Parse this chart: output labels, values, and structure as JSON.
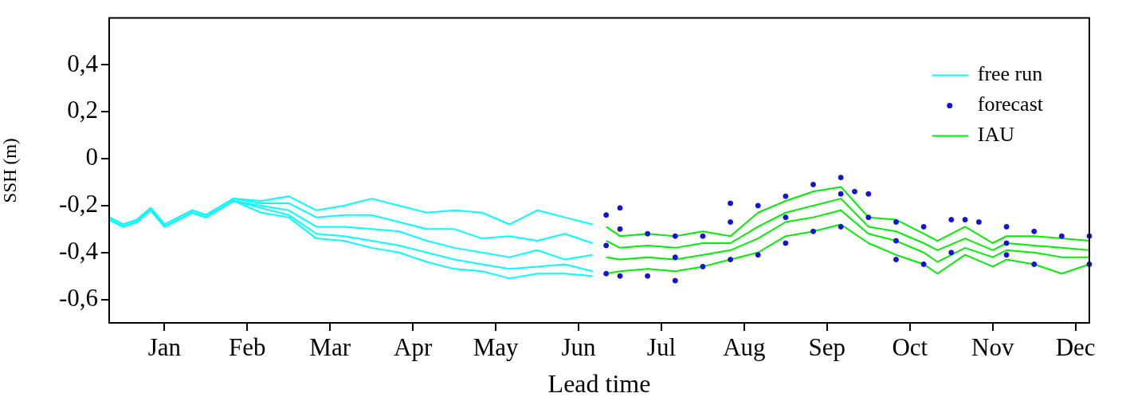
{
  "chart_data": {
    "type": "line",
    "xlabel": "Lead time",
    "ylabel": "SSH (m)",
    "legend": "top right",
    "ylim": [
      -0.7,
      0.6
    ],
    "categories": [
      null,
      null,
      null,
      null,
      "Jan",
      null,
      null,
      null,
      null,
      null,
      "Feb",
      null,
      null,
      null,
      null,
      null,
      "Mar",
      null,
      null,
      null,
      null,
      null,
      "Apr",
      null,
      null,
      null,
      null,
      null,
      "May",
      null,
      null,
      null,
      null,
      null,
      "Jun",
      null,
      null,
      null,
      null,
      null,
      "Jul",
      null,
      null,
      null,
      null,
      null,
      "Aug",
      null,
      null,
      null,
      null,
      null,
      "Sep",
      null,
      null,
      null,
      null,
      null,
      "Oct",
      null,
      null,
      null,
      null,
      null,
      "Nov",
      null,
      null,
      null,
      null,
      null,
      "Dec",
      null
    ],
    "yticks": [
      {
        "value": -0.6,
        "label": "-0,6"
      },
      {
        "value": -0.4,
        "label": "-0,4"
      },
      {
        "value": -0.2,
        "label": "-0,2"
      },
      {
        "value": 0,
        "label": "0"
      },
      {
        "value": 0.2,
        "label": "0,2"
      },
      {
        "value": 0.4,
        "label": "0,4"
      }
    ],
    "series": [
      {
        "name": "free run",
        "color": "#00ffff",
        "values": [
          -0.25,
          -0.28,
          -0.26,
          -0.21,
          -0.28,
          -0.25,
          -0.22,
          -0.24,
          null,
          -0.17,
          null,
          -0.18,
          null,
          -0.16,
          null,
          -0.22,
          null,
          -0.2,
          null,
          -0.17,
          null,
          -0.2,
          null,
          -0.23,
          null,
          -0.22,
          null,
          -0.23,
          null,
          -0.28,
          null,
          -0.22,
          null,
          -0.25,
          null,
          -0.28,
          null,
          null,
          null,
          null,
          null,
          null,
          null,
          null,
          null,
          null,
          null,
          null,
          null,
          null,
          null,
          null,
          null,
          null,
          null,
          null,
          null,
          null,
          null,
          null,
          null,
          null,
          null,
          null,
          null,
          null,
          null,
          null,
          null,
          null,
          null,
          null
        ]
      },
      {
        "color": "#00ffff",
        "values": [
          -0.25,
          -0.28,
          -0.26,
          -0.21,
          -0.28,
          -0.25,
          -0.22,
          -0.24,
          null,
          -0.17,
          null,
          -0.19,
          null,
          -0.19,
          null,
          -0.25,
          null,
          -0.24,
          null,
          -0.24,
          null,
          -0.27,
          null,
          -0.3,
          null,
          -0.3,
          null,
          -0.34,
          null,
          -0.33,
          null,
          -0.35,
          null,
          -0.32,
          null,
          -0.36,
          null,
          null,
          null,
          null,
          null,
          null,
          null,
          null,
          null,
          null,
          null,
          null,
          null,
          null,
          null,
          null,
          null,
          null,
          null,
          null,
          null,
          null,
          null,
          null,
          null,
          null,
          null,
          null,
          null,
          null,
          null,
          null,
          null,
          null,
          null,
          null
        ]
      },
      {
        "color": "#00ffff",
        "values": [
          -0.26,
          -0.29,
          -0.27,
          -0.22,
          -0.29,
          -0.26,
          -0.23,
          -0.25,
          null,
          -0.18,
          null,
          -0.2,
          null,
          -0.22,
          null,
          -0.29,
          null,
          -0.29,
          null,
          -0.3,
          null,
          -0.31,
          null,
          -0.35,
          null,
          -0.38,
          null,
          -0.4,
          null,
          -0.42,
          null,
          -0.39,
          null,
          -0.43,
          null,
          -0.41,
          null,
          null,
          null,
          null,
          null,
          null,
          null,
          null,
          null,
          null,
          null,
          null,
          null,
          null,
          null,
          null,
          null,
          null,
          null,
          null,
          null,
          null,
          null,
          null,
          null,
          null,
          null,
          null,
          null,
          null,
          null,
          null,
          null,
          null,
          null,
          null
        ]
      },
      {
        "color": "#00ffff",
        "values": [
          -0.26,
          -0.29,
          -0.27,
          -0.22,
          -0.29,
          -0.26,
          -0.23,
          -0.25,
          null,
          -0.18,
          null,
          -0.21,
          null,
          -0.24,
          null,
          -0.32,
          null,
          -0.33,
          null,
          -0.35,
          null,
          -0.37,
          null,
          -0.4,
          null,
          -0.43,
          null,
          -0.45,
          null,
          -0.47,
          null,
          -0.46,
          null,
          -0.45,
          null,
          -0.48,
          null,
          null,
          null,
          null,
          null,
          null,
          null,
          null,
          null,
          null,
          null,
          null,
          null,
          null,
          null,
          null,
          null,
          null,
          null,
          null,
          null,
          null,
          null,
          null,
          null,
          null,
          null,
          null,
          null,
          null,
          null,
          null,
          null,
          null,
          null,
          null
        ]
      },
      {
        "color": "#00ffff",
        "values": [
          -0.26,
          -0.29,
          -0.27,
          -0.22,
          -0.29,
          -0.26,
          -0.23,
          -0.25,
          null,
          -0.18,
          null,
          -0.23,
          null,
          -0.25,
          null,
          -0.34,
          null,
          -0.35,
          null,
          -0.38,
          null,
          -0.4,
          null,
          -0.44,
          null,
          -0.47,
          null,
          -0.48,
          null,
          -0.51,
          null,
          -0.49,
          null,
          -0.49,
          null,
          -0.5,
          null,
          null,
          null,
          null,
          null,
          null,
          null,
          null,
          null,
          null,
          null,
          null,
          null,
          null,
          null,
          null,
          null,
          null,
          null,
          null,
          null,
          null,
          null,
          null,
          null,
          null,
          null,
          null,
          null,
          null,
          null,
          null,
          null,
          null,
          null,
          null
        ]
      },
      {
        "name": "forecast",
        "type": "scatter",
        "marker": "circle",
        "color": "#1414d2",
        "values": [
          null,
          null,
          null,
          null,
          null,
          null,
          null,
          null,
          null,
          null,
          null,
          null,
          null,
          null,
          null,
          null,
          null,
          null,
          null,
          null,
          null,
          null,
          null,
          null,
          null,
          null,
          null,
          null,
          null,
          null,
          null,
          null,
          null,
          null,
          null,
          null,
          -0.24,
          -0.21,
          null,
          -0.32,
          null,
          -0.33,
          null,
          -0.33,
          null,
          -0.19,
          null,
          -0.2,
          null,
          -0.16,
          null,
          -0.11,
          null,
          -0.08,
          -0.14,
          -0.15,
          null,
          -0.27,
          null,
          -0.29,
          null,
          -0.26,
          -0.26,
          -0.27,
          null,
          -0.29,
          null,
          -0.31,
          null,
          -0.33,
          null,
          -0.33
        ]
      },
      {
        "type": "scatter",
        "marker": "circle",
        "color": "#1414d2",
        "values": [
          null,
          null,
          null,
          null,
          null,
          null,
          null,
          null,
          null,
          null,
          null,
          null,
          null,
          null,
          null,
          null,
          null,
          null,
          null,
          null,
          null,
          null,
          null,
          null,
          null,
          null,
          null,
          null,
          null,
          null,
          null,
          null,
          null,
          null,
          null,
          null,
          -0.37,
          -0.3,
          null,
          null,
          null,
          -0.42,
          null,
          null,
          null,
          -0.27,
          null,
          null,
          null,
          -0.25,
          null,
          null,
          null,
          -0.15,
          null,
          null,
          null,
          -0.35,
          null,
          null,
          null,
          null,
          null,
          null,
          null,
          -0.36,
          null,
          null,
          null,
          null,
          null,
          null
        ]
      },
      {
        "type": "scatter",
        "marker": "circle",
        "color": "#1414d2",
        "values": [
          null,
          null,
          null,
          null,
          null,
          null,
          null,
          null,
          null,
          null,
          null,
          null,
          null,
          null,
          null,
          null,
          null,
          null,
          null,
          null,
          null,
          null,
          null,
          null,
          null,
          null,
          null,
          null,
          null,
          null,
          null,
          null,
          null,
          null,
          null,
          null,
          -0.49,
          -0.5,
          null,
          -0.5,
          null,
          -0.52,
          null,
          -0.46,
          null,
          -0.43,
          null,
          -0.41,
          null,
          -0.36,
          null,
          -0.31,
          null,
          -0.29,
          null,
          -0.25,
          null,
          -0.43,
          null,
          -0.45,
          null,
          -0.4,
          null,
          null,
          null,
          -0.41,
          null,
          -0.45,
          null,
          null,
          null,
          -0.45
        ]
      },
      {
        "name": "IAU",
        "color": "#00ee00",
        "values": [
          null,
          null,
          null,
          null,
          null,
          null,
          null,
          null,
          null,
          null,
          null,
          null,
          null,
          null,
          null,
          null,
          null,
          null,
          null,
          null,
          null,
          null,
          null,
          null,
          null,
          null,
          null,
          null,
          null,
          null,
          null,
          null,
          null,
          null,
          null,
          null,
          -0.29,
          -0.33,
          null,
          -0.32,
          null,
          -0.33,
          null,
          -0.31,
          null,
          -0.33,
          null,
          -0.23,
          null,
          -0.18,
          null,
          -0.14,
          null,
          -0.12,
          null,
          -0.25,
          null,
          -0.26,
          null,
          -0.32,
          -0.35,
          null,
          -0.29,
          null,
          -0.36,
          -0.33,
          null,
          -0.33,
          null,
          -0.34,
          null,
          -0.35
        ]
      },
      {
        "color": "#00ee00",
        "values": [
          null,
          null,
          null,
          null,
          null,
          null,
          null,
          null,
          null,
          null,
          null,
          null,
          null,
          null,
          null,
          null,
          null,
          null,
          null,
          null,
          null,
          null,
          null,
          null,
          null,
          null,
          null,
          null,
          null,
          null,
          null,
          null,
          null,
          null,
          null,
          null,
          -0.35,
          -0.38,
          null,
          -0.37,
          null,
          -0.38,
          null,
          -0.36,
          null,
          -0.36,
          null,
          -0.29,
          null,
          -0.23,
          null,
          -0.2,
          null,
          -0.17,
          null,
          -0.29,
          null,
          -0.31,
          null,
          -0.36,
          -0.39,
          null,
          -0.34,
          null,
          -0.39,
          -0.36,
          null,
          -0.37,
          null,
          -0.38,
          null,
          -0.39
        ]
      },
      {
        "color": "#00ee00",
        "values": [
          null,
          null,
          null,
          null,
          null,
          null,
          null,
          null,
          null,
          null,
          null,
          null,
          null,
          null,
          null,
          null,
          null,
          null,
          null,
          null,
          null,
          null,
          null,
          null,
          null,
          null,
          null,
          null,
          null,
          null,
          null,
          null,
          null,
          null,
          null,
          null,
          -0.42,
          -0.43,
          null,
          -0.42,
          null,
          -0.43,
          null,
          -0.41,
          null,
          -0.39,
          null,
          -0.34,
          null,
          -0.27,
          null,
          -0.25,
          null,
          -0.22,
          null,
          -0.32,
          null,
          -0.35,
          null,
          -0.4,
          -0.44,
          null,
          -0.38,
          null,
          -0.42,
          -0.39,
          null,
          -0.4,
          null,
          -0.42,
          null,
          -0.42
        ]
      },
      {
        "color": "#00ee00",
        "values": [
          null,
          null,
          null,
          null,
          null,
          null,
          null,
          null,
          null,
          null,
          null,
          null,
          null,
          null,
          null,
          null,
          null,
          null,
          null,
          null,
          null,
          null,
          null,
          null,
          null,
          null,
          null,
          null,
          null,
          null,
          null,
          null,
          null,
          null,
          null,
          null,
          -0.49,
          -0.48,
          null,
          -0.47,
          null,
          -0.48,
          null,
          -0.46,
          null,
          -0.43,
          null,
          -0.4,
          null,
          -0.33,
          null,
          -0.31,
          null,
          -0.28,
          null,
          -0.36,
          null,
          -0.41,
          null,
          -0.45,
          -0.49,
          null,
          -0.41,
          null,
          -0.46,
          -0.43,
          null,
          -0.45,
          null,
          -0.49,
          null,
          -0.45
        ]
      }
    ]
  }
}
